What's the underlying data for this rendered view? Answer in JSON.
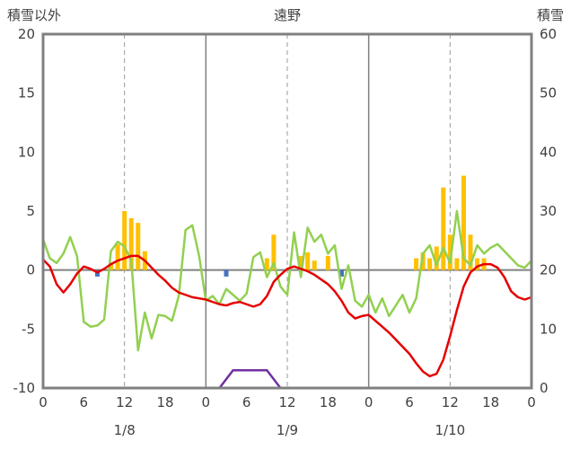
{
  "header": {
    "left_axis_title": "積雪以外",
    "chart_title": "遠野",
    "right_axis_title": "積雪"
  },
  "colors": {
    "temperature_line": "#e60000",
    "green_line": "#92d050",
    "snowfall_bars": "#ffc000",
    "rain_bars": "#4472c4",
    "snow_depth_line": "#7030a0",
    "grid": "#808080",
    "dashed_grid": "#999999",
    "text": "#404040"
  },
  "chart_data": {
    "type": "line",
    "title": "遠野",
    "left_axis": {
      "label": "積雪以外",
      "min": -10,
      "max": 20,
      "ticks": [
        20,
        15,
        10,
        5,
        0,
        -5,
        -10
      ]
    },
    "right_axis": {
      "label": "積雪",
      "min": 0,
      "max": 60,
      "ticks": [
        60,
        50,
        40,
        30,
        20,
        10,
        0
      ]
    },
    "x_axis": {
      "min": 0,
      "max": 72,
      "tick_hours": [
        0,
        6,
        12,
        18,
        24,
        30,
        36,
        42,
        48,
        54,
        60,
        66,
        72
      ],
      "tick_labels": [
        "0",
        "6",
        "12",
        "18",
        "0",
        "6",
        "12",
        "18",
        "0",
        "6",
        "12",
        "18",
        "0"
      ],
      "day_labels": [
        "1/8",
        "1/9",
        "1/10"
      ],
      "day_center_hours": [
        12,
        36,
        60
      ],
      "solid_gridline_hours": [
        24,
        48
      ],
      "dashed_gridline_hours": [
        12,
        36,
        60
      ]
    },
    "series": [
      {
        "name": "snowfall-bars",
        "type": "bar",
        "axis": "left",
        "color": "#ffc000",
        "points": [
          {
            "x": 10,
            "v": 0.6
          },
          {
            "x": 11,
            "v": 2.2
          },
          {
            "x": 12,
            "v": 5.0
          },
          {
            "x": 13,
            "v": 4.4
          },
          {
            "x": 14,
            "v": 4.0
          },
          {
            "x": 15,
            "v": 1.6
          },
          {
            "x": 33,
            "v": 1.0
          },
          {
            "x": 34,
            "v": 3.0
          },
          {
            "x": 38,
            "v": 1.2
          },
          {
            "x": 39,
            "v": 1.5
          },
          {
            "x": 40,
            "v": 0.8
          },
          {
            "x": 42,
            "v": 1.2
          },
          {
            "x": 55,
            "v": 1.0
          },
          {
            "x": 56,
            "v": 1.5
          },
          {
            "x": 57,
            "v": 1.0
          },
          {
            "x": 58,
            "v": 2.0
          },
          {
            "x": 59,
            "v": 7.0
          },
          {
            "x": 60,
            "v": 3.0
          },
          {
            "x": 61,
            "v": 1.0
          },
          {
            "x": 62,
            "v": 8.0
          },
          {
            "x": 63,
            "v": 3.0
          },
          {
            "x": 64,
            "v": 1.0
          },
          {
            "x": 65,
            "v": 1.0
          }
        ]
      },
      {
        "name": "rain-bars",
        "type": "bar",
        "axis": "left",
        "color": "#4472c4",
        "points": [
          {
            "x": 8,
            "v": -0.55
          },
          {
            "x": 27,
            "v": -0.55
          },
          {
            "x": 44,
            "v": -0.55
          }
        ]
      },
      {
        "name": "green-indicator",
        "type": "line",
        "axis": "left",
        "color": "#92d050",
        "x_start": 0,
        "x_step": 1,
        "values": [
          2.6,
          1.0,
          0.6,
          1.4,
          2.8,
          1.2,
          -4.4,
          -4.8,
          -4.7,
          -4.2,
          1.6,
          2.4,
          2.0,
          0.8,
          -6.8,
          -3.6,
          -5.8,
          -3.8,
          -3.9,
          -4.3,
          -2.2,
          3.4,
          3.8,
          1.2,
          -2.6,
          -2.2,
          -2.9,
          -1.6,
          -2.1,
          -2.6,
          -2.0,
          1.1,
          1.5,
          -0.6,
          0.6,
          -1.4,
          -2.1,
          3.2,
          -0.6,
          3.6,
          2.4,
          3.0,
          1.4,
          2.1,
          -1.6,
          0.4,
          -2.6,
          -3.1,
          -2.1,
          -3.6,
          -2.4,
          -3.9,
          -3.0,
          -2.1,
          -3.6,
          -2.4,
          1.4,
          2.1,
          0.4,
          1.9,
          0.6,
          5.0,
          1.0,
          0.4,
          2.1,
          1.4,
          1.9,
          2.2,
          1.6,
          1.0,
          0.4,
          0.2,
          0.8
        ]
      },
      {
        "name": "temperature",
        "type": "line",
        "axis": "left",
        "color": "#e60000",
        "x_start": 0,
        "x_step": 1,
        "values": [
          0.9,
          0.3,
          -1.2,
          -1.9,
          -1.2,
          -0.3,
          0.3,
          0.1,
          -0.2,
          0.1,
          0.5,
          0.8,
          1.0,
          1.2,
          1.2,
          0.8,
          0.2,
          -0.4,
          -0.9,
          -1.5,
          -1.9,
          -2.1,
          -2.3,
          -2.4,
          -2.5,
          -2.7,
          -2.9,
          -3.0,
          -2.8,
          -2.7,
          -2.9,
          -3.1,
          -2.9,
          -2.2,
          -1.0,
          -0.4,
          0.1,
          0.3,
          0.1,
          -0.1,
          -0.4,
          -0.8,
          -1.2,
          -1.8,
          -2.6,
          -3.6,
          -4.1,
          -3.9,
          -3.8,
          -4.3,
          -4.8,
          -5.3,
          -5.9,
          -6.5,
          -7.1,
          -7.9,
          -8.6,
          -9.0,
          -8.8,
          -7.6,
          -5.6,
          -3.4,
          -1.4,
          -0.2,
          0.3,
          0.5,
          0.5,
          0.2,
          -0.6,
          -1.8,
          -2.3,
          -2.5,
          -2.3
        ]
      },
      {
        "name": "snow-depth",
        "type": "line",
        "axis": "right",
        "color": "#7030a0",
        "points": [
          {
            "x": 0,
            "v": 0
          },
          {
            "x": 26,
            "v": 0
          },
          {
            "x": 28,
            "v": 3
          },
          {
            "x": 33,
            "v": 3
          },
          {
            "x": 35,
            "v": 0
          },
          {
            "x": 72,
            "v": 0
          }
        ]
      }
    ]
  }
}
